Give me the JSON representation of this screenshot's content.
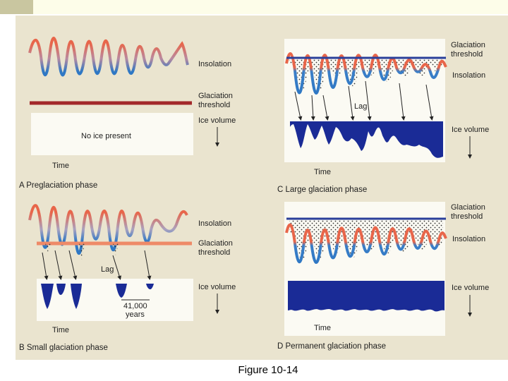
{
  "figure_caption": "Figure 10-14",
  "panels": {
    "a": {
      "caption": "A  Preglaciation phase",
      "insolation": "Insolation",
      "threshold": [
        "Glaciation",
        "threshold"
      ],
      "ice_volume": "Ice volume",
      "no_ice": "No ice present",
      "time": "Time"
    },
    "b": {
      "caption": "B  Small glaciation phase",
      "insolation": "Insolation",
      "threshold": [
        "Glaciation",
        "threshold"
      ],
      "lag": "Lag",
      "ice_volume": "Ice volume",
      "period": [
        "41,000",
        "years"
      ],
      "time": "Time"
    },
    "c": {
      "caption": "C  Large glaciation phase",
      "threshold": [
        "Glaciation",
        "threshold"
      ],
      "insolation": "Insolation",
      "lag": "Lag",
      "ice_volume": "Ice volume",
      "time": "Time"
    },
    "d": {
      "caption": "D  Permanent glaciation phase",
      "threshold": [
        "Glaciation",
        "threshold"
      ],
      "insolation": "Insolation",
      "ice_volume": "Ice volume",
      "time": "Time"
    }
  },
  "colors": {
    "warm": "#e8664a",
    "cool": "#2f78c4",
    "threshold_a": "#a3282a",
    "threshold_b": "#ee8a68",
    "threshold_cd": "#2a3f9a",
    "ice": "#1a2b96"
  }
}
